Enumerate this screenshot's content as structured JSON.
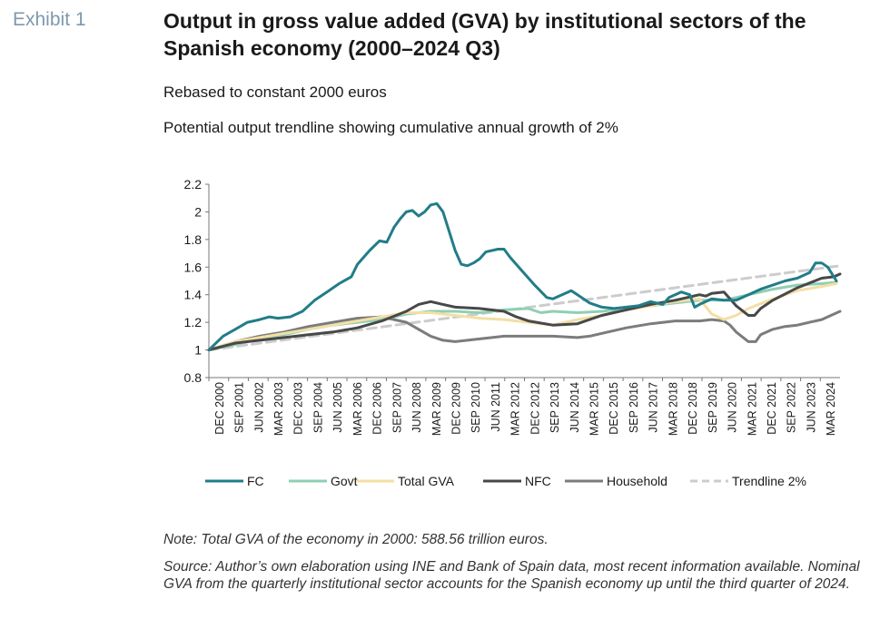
{
  "header": {
    "exhibit": "Exhibit 1",
    "title": "Output in gross value added (GVA) by institutional sectors of the Spanish economy (2000–2024 Q3)",
    "subtitle1": "Rebased to constant 2000 euros",
    "subtitle2": "Potential output trendline showing cumulative annual growth of 2%"
  },
  "notes": {
    "note": "Note: Total GVA of the economy in 2000: 588.56 trillion euros.",
    "source": "Source: Author’s own elaboration using INE and Bank of Spain data, most recent information available. Nominal GVA from the quarterly institutional sector accounts for the Spanish economy up until the third quarter of 2024."
  },
  "chart_data": {
    "type": "line",
    "ylim": [
      0.8,
      2.2
    ],
    "yticks": [
      0.8,
      1,
      1.2,
      1.4,
      1.6,
      1.8,
      2,
      2.2
    ],
    "grid": false,
    "legend_position": "bottom",
    "x_tick_labels": [
      "DEC 2000",
      "SEP 2001",
      "JUN 2002",
      "MAR 2003",
      "DEC 2003",
      "SEP 2004",
      "JUN 2005",
      "MAR 2006",
      "DEC 2006",
      "SEP 2007",
      "JUN 2008",
      "MAR 2009",
      "DEC 2009",
      "SEP 2010",
      "JUN 2011",
      "MAR 2012",
      "DEC 2012",
      "SEP 2013",
      "JUN 2014",
      "MAR 2015",
      "DEC 2015",
      "SEP 2016",
      "JUN 2017",
      "MAR 2018",
      "DEC 2018",
      "SEP 2019",
      "JUN 2020",
      "MAR 2021",
      "DEC 2021",
      "SEP 2022",
      "JUN 2023",
      "MAR 2024"
    ],
    "x_start": "DEC 2000",
    "x_end": "SEP 2024",
    "series": [
      {
        "name": "FC",
        "color": "#217d88",
        "dash": "",
        "points": [
          [
            2000.92,
            1.0
          ],
          [
            2001.5,
            1.1
          ],
          [
            2002.0,
            1.15
          ],
          [
            2002.5,
            1.2
          ],
          [
            2003.0,
            1.22
          ],
          [
            2003.4,
            1.24
          ],
          [
            2003.75,
            1.23
          ],
          [
            2004.25,
            1.24
          ],
          [
            2004.75,
            1.28
          ],
          [
            2005.25,
            1.36
          ],
          [
            2005.75,
            1.42
          ],
          [
            2006.25,
            1.48
          ],
          [
            2006.75,
            1.53
          ],
          [
            2007.0,
            1.62
          ],
          [
            2007.5,
            1.72
          ],
          [
            2007.9,
            1.79
          ],
          [
            2008.2,
            1.78
          ],
          [
            2008.5,
            1.89
          ],
          [
            2008.75,
            1.95
          ],
          [
            2009.0,
            2.0
          ],
          [
            2009.25,
            2.01
          ],
          [
            2009.5,
            1.97
          ],
          [
            2009.75,
            2.0
          ],
          [
            2010.0,
            2.05
          ],
          [
            2010.25,
            2.06
          ],
          [
            2010.5,
            2.0
          ],
          [
            2010.75,
            1.86
          ],
          [
            2011.0,
            1.72
          ],
          [
            2011.25,
            1.62
          ],
          [
            2011.5,
            1.61
          ],
          [
            2011.75,
            1.63
          ],
          [
            2012.0,
            1.66
          ],
          [
            2012.25,
            1.71
          ],
          [
            2012.75,
            1.73
          ],
          [
            2013.0,
            1.73
          ],
          [
            2013.25,
            1.67
          ],
          [
            2013.75,
            1.57
          ],
          [
            2014.25,
            1.47
          ],
          [
            2014.75,
            1.38
          ],
          [
            2015.0,
            1.37
          ],
          [
            2015.5,
            1.41
          ],
          [
            2015.75,
            1.43
          ],
          [
            2016.0,
            1.4
          ],
          [
            2016.5,
            1.34
          ],
          [
            2017.0,
            1.31
          ],
          [
            2017.5,
            1.3
          ],
          [
            2018.0,
            1.31
          ],
          [
            2018.5,
            1.32
          ],
          [
            2019.0,
            1.35
          ],
          [
            2019.5,
            1.33
          ],
          [
            2019.75,
            1.38
          ],
          [
            2020.25,
            1.42
          ],
          [
            2020.6,
            1.4
          ],
          [
            2020.8,
            1.31
          ],
          [
            2021.0,
            1.33
          ],
          [
            2021.5,
            1.37
          ],
          [
            2022.0,
            1.36
          ],
          [
            2022.5,
            1.36
          ],
          [
            2023.0,
            1.4
          ],
          [
            2023.5,
            1.44
          ],
          [
            2024.0,
            1.47
          ],
          [
            2024.5,
            1.5
          ],
          [
            2025.0,
            1.52
          ],
          [
            2025.5,
            1.56
          ],
          [
            2025.75,
            1.63
          ],
          [
            2026.0,
            1.63
          ],
          [
            2026.25,
            1.6
          ],
          [
            2026.6,
            1.5
          ]
        ]
      },
      {
        "name": "Govt",
        "color": "#8fcfb3",
        "dash": "",
        "points": [
          [
            2000.92,
            1.0
          ],
          [
            2002.0,
            1.04
          ],
          [
            2003.0,
            1.08
          ],
          [
            2004.0,
            1.11
          ],
          [
            2005.0,
            1.15
          ],
          [
            2006.0,
            1.18
          ],
          [
            2007.0,
            1.2
          ],
          [
            2008.0,
            1.22
          ],
          [
            2009.0,
            1.26
          ],
          [
            2010.0,
            1.28
          ],
          [
            2011.0,
            1.28
          ],
          [
            2012.0,
            1.27
          ],
          [
            2013.0,
            1.29
          ],
          [
            2014.0,
            1.3
          ],
          [
            2014.5,
            1.27
          ],
          [
            2015.0,
            1.28
          ],
          [
            2016.0,
            1.27
          ],
          [
            2017.0,
            1.28
          ],
          [
            2018.0,
            1.3
          ],
          [
            2019.0,
            1.32
          ],
          [
            2020.0,
            1.34
          ],
          [
            2021.0,
            1.36
          ],
          [
            2022.0,
            1.36
          ],
          [
            2022.5,
            1.38
          ],
          [
            2023.0,
            1.4
          ],
          [
            2024.0,
            1.44
          ],
          [
            2025.0,
            1.47
          ],
          [
            2026.0,
            1.48
          ],
          [
            2026.6,
            1.49
          ]
        ]
      },
      {
        "name": "Total GVA",
        "color": "#f3dfa5",
        "dash": "",
        "points": [
          [
            2000.92,
            1.0
          ],
          [
            2002.0,
            1.06
          ],
          [
            2003.0,
            1.09
          ],
          [
            2004.0,
            1.12
          ],
          [
            2005.0,
            1.15
          ],
          [
            2006.0,
            1.18
          ],
          [
            2007.0,
            1.21
          ],
          [
            2008.0,
            1.24
          ],
          [
            2009.0,
            1.27
          ],
          [
            2010.0,
            1.27
          ],
          [
            2011.0,
            1.25
          ],
          [
            2012.0,
            1.23
          ],
          [
            2013.0,
            1.22
          ],
          [
            2014.0,
            1.2
          ],
          [
            2015.0,
            1.18
          ],
          [
            2016.0,
            1.22
          ],
          [
            2017.0,
            1.25
          ],
          [
            2018.0,
            1.29
          ],
          [
            2019.0,
            1.32
          ],
          [
            2020.0,
            1.35
          ],
          [
            2021.0,
            1.37
          ],
          [
            2021.5,
            1.26
          ],
          [
            2022.0,
            1.22
          ],
          [
            2022.5,
            1.25
          ],
          [
            2023.0,
            1.3
          ],
          [
            2024.0,
            1.37
          ],
          [
            2025.0,
            1.43
          ],
          [
            2026.0,
            1.46
          ],
          [
            2026.6,
            1.48
          ]
        ]
      },
      {
        "name": "NFC",
        "color": "#484848",
        "dash": "",
        "points": [
          [
            2000.92,
            1.0
          ],
          [
            2002.0,
            1.05
          ],
          [
            2003.0,
            1.07
          ],
          [
            2004.0,
            1.09
          ],
          [
            2005.0,
            1.11
          ],
          [
            2006.0,
            1.13
          ],
          [
            2007.0,
            1.16
          ],
          [
            2008.0,
            1.21
          ],
          [
            2009.0,
            1.28
          ],
          [
            2009.5,
            1.33
          ],
          [
            2010.0,
            1.35
          ],
          [
            2010.5,
            1.33
          ],
          [
            2011.0,
            1.31
          ],
          [
            2012.0,
            1.3
          ],
          [
            2013.0,
            1.28
          ],
          [
            2013.5,
            1.24
          ],
          [
            2014.0,
            1.21
          ],
          [
            2015.0,
            1.18
          ],
          [
            2016.0,
            1.19
          ],
          [
            2016.5,
            1.22
          ],
          [
            2017.0,
            1.25
          ],
          [
            2018.0,
            1.29
          ],
          [
            2019.0,
            1.33
          ],
          [
            2020.0,
            1.36
          ],
          [
            2021.0,
            1.4
          ],
          [
            2021.25,
            1.39
          ],
          [
            2021.5,
            1.41
          ],
          [
            2022.0,
            1.42
          ],
          [
            2022.5,
            1.32
          ],
          [
            2023.0,
            1.25
          ],
          [
            2023.25,
            1.25
          ],
          [
            2023.5,
            1.3
          ],
          [
            2024.0,
            1.36
          ],
          [
            2025.0,
            1.45
          ],
          [
            2026.0,
            1.52
          ],
          [
            2026.5,
            1.53
          ],
          [
            2026.75,
            1.55
          ]
        ]
      },
      {
        "name": "Household",
        "color": "#7c7c7c",
        "dash": "",
        "points": [
          [
            2000.92,
            1.0
          ],
          [
            2002.0,
            1.06
          ],
          [
            2003.0,
            1.1
          ],
          [
            2004.0,
            1.13
          ],
          [
            2005.0,
            1.17
          ],
          [
            2006.0,
            1.2
          ],
          [
            2007.0,
            1.23
          ],
          [
            2008.0,
            1.24
          ],
          [
            2009.0,
            1.2
          ],
          [
            2009.5,
            1.15
          ],
          [
            2010.0,
            1.1
          ],
          [
            2010.5,
            1.07
          ],
          [
            2011.0,
            1.06
          ],
          [
            2011.5,
            1.07
          ],
          [
            2012.0,
            1.08
          ],
          [
            2012.5,
            1.09
          ],
          [
            2013.0,
            1.1
          ],
          [
            2014.0,
            1.1
          ],
          [
            2015.0,
            1.1
          ],
          [
            2016.0,
            1.09
          ],
          [
            2016.5,
            1.1
          ],
          [
            2017.0,
            1.12
          ],
          [
            2018.0,
            1.16
          ],
          [
            2019.0,
            1.19
          ],
          [
            2020.0,
            1.21
          ],
          [
            2021.0,
            1.21
          ],
          [
            2021.5,
            1.22
          ],
          [
            2022.0,
            1.21
          ],
          [
            2022.25,
            1.18
          ],
          [
            2022.5,
            1.13
          ],
          [
            2023.0,
            1.06
          ],
          [
            2023.3,
            1.06
          ],
          [
            2023.5,
            1.11
          ],
          [
            2024.0,
            1.15
          ],
          [
            2024.5,
            1.17
          ],
          [
            2025.0,
            1.18
          ],
          [
            2025.5,
            1.2
          ],
          [
            2026.0,
            1.22
          ],
          [
            2026.75,
            1.28
          ]
        ]
      },
      {
        "name": "Trendline 2%",
        "color": "#cccccc",
        "dash": "10 6",
        "points": [
          [
            2000.92,
            1.0
          ],
          [
            2026.75,
            1.61
          ]
        ]
      }
    ]
  }
}
